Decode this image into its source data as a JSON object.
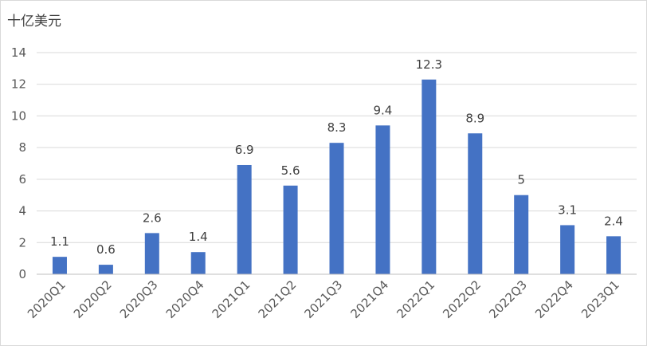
{
  "chart_data": {
    "type": "bar",
    "title": "",
    "xlabel": "",
    "ylabel": "十亿美元",
    "categories": [
      "2020Q1",
      "2020Q2",
      "2020Q3",
      "2020Q4",
      "2021Q1",
      "2021Q2",
      "2021Q3",
      "2021Q4",
      "2022Q1",
      "2022Q2",
      "2022Q3",
      "2022Q4",
      "2023Q1"
    ],
    "values": [
      1.1,
      0.6,
      2.6,
      1.4,
      6.9,
      5.6,
      8.3,
      9.4,
      12.3,
      8.9,
      5,
      3.1,
      2.4
    ],
    "data_labels": [
      "1.1",
      "0.6",
      "2.6",
      "1.4",
      "6.9",
      "5.6",
      "8.3",
      "9.4",
      "12.3",
      "8.9",
      "5",
      "3.1",
      "2.4"
    ],
    "ylim": [
      0,
      14
    ],
    "yticks": [
      0,
      2,
      4,
      6,
      8,
      10,
      12,
      14
    ],
    "grid": true,
    "legend": "none",
    "colors": {
      "bar": "#4472c4",
      "grid": "#d9d9d9",
      "axis": "#bfbfbf",
      "text": "#595959"
    }
  }
}
